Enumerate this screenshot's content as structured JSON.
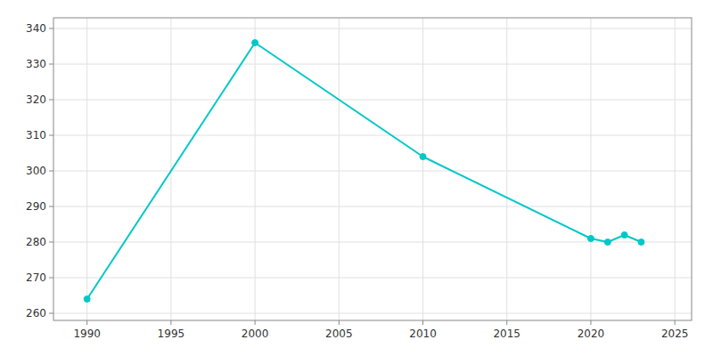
{
  "chart_data": {
    "type": "line",
    "x": [
      1990,
      2000,
      2010,
      2020,
      2021,
      2022,
      2023
    ],
    "values": [
      264,
      336,
      304,
      281,
      280,
      282,
      280
    ],
    "color": "#00C8C8",
    "marker": "circle",
    "xlim": [
      1988,
      2026
    ],
    "ylim": [
      258,
      343
    ],
    "xticks": [
      1990,
      1995,
      2000,
      2005,
      2010,
      2015,
      2020,
      2025
    ],
    "yticks": [
      260,
      270,
      280,
      290,
      300,
      310,
      320,
      330,
      340
    ],
    "grid": true
  }
}
